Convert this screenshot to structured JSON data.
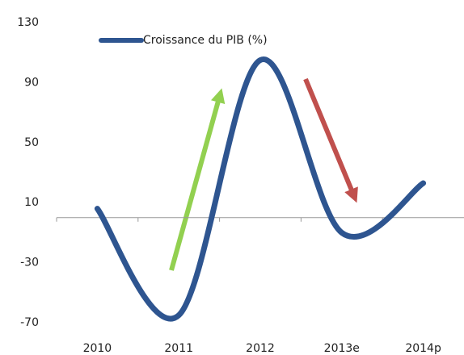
{
  "chart_data": {
    "type": "line",
    "categories": [
      "2010",
      "2011",
      "2012",
      "2013e",
      "2014p"
    ],
    "series": [
      {
        "name": "Croissance du PIB (%)",
        "color": "#2e5590",
        "values": [
          6,
          -65,
          105,
          -10,
          23
        ]
      }
    ],
    "ylim": [
      -70,
      130
    ],
    "yticks": [
      -70,
      -30,
      10,
      50,
      90,
      130
    ],
    "grid": false,
    "smooth": true,
    "legend": "top"
  }
}
